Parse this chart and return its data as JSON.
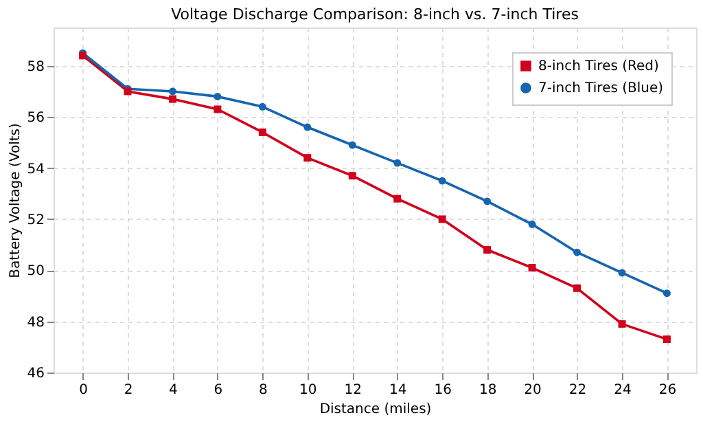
{
  "chart_data": {
    "type": "line",
    "title": "Voltage Discharge Comparison: 8-inch vs. 7-inch Tires",
    "xlabel": "Distance (miles)",
    "ylabel": "Battery Voltage (Volts)",
    "x": [
      0,
      2,
      4,
      6,
      8,
      10,
      12,
      14,
      16,
      18,
      20,
      22,
      24,
      26
    ],
    "series": [
      {
        "name": "8-inch Tires (Red)",
        "color": "#d0021b",
        "marker": "square",
        "values": [
          58.4,
          57.0,
          56.7,
          56.3,
          55.4,
          54.4,
          53.7,
          52.8,
          52.0,
          50.8,
          50.1,
          49.3,
          47.9,
          47.3
        ]
      },
      {
        "name": "7-inch Tires (Blue)",
        "color": "#1565b0",
        "marker": "circle",
        "values": [
          58.5,
          57.1,
          57.0,
          56.8,
          56.4,
          55.6,
          54.9,
          54.2,
          53.5,
          52.7,
          51.8,
          50.7,
          49.9,
          49.1
        ]
      }
    ],
    "xlim": [
      -1.3,
      27.3
    ],
    "xticks": [
      0,
      2,
      4,
      6,
      8,
      10,
      12,
      14,
      16,
      18,
      20,
      22,
      24,
      26
    ],
    "ylim": [
      46,
      59.5
    ],
    "yticks": [
      46,
      48,
      50,
      52,
      54,
      56,
      58
    ],
    "grid": true,
    "legend": "top right",
    "line_style": "solid"
  }
}
